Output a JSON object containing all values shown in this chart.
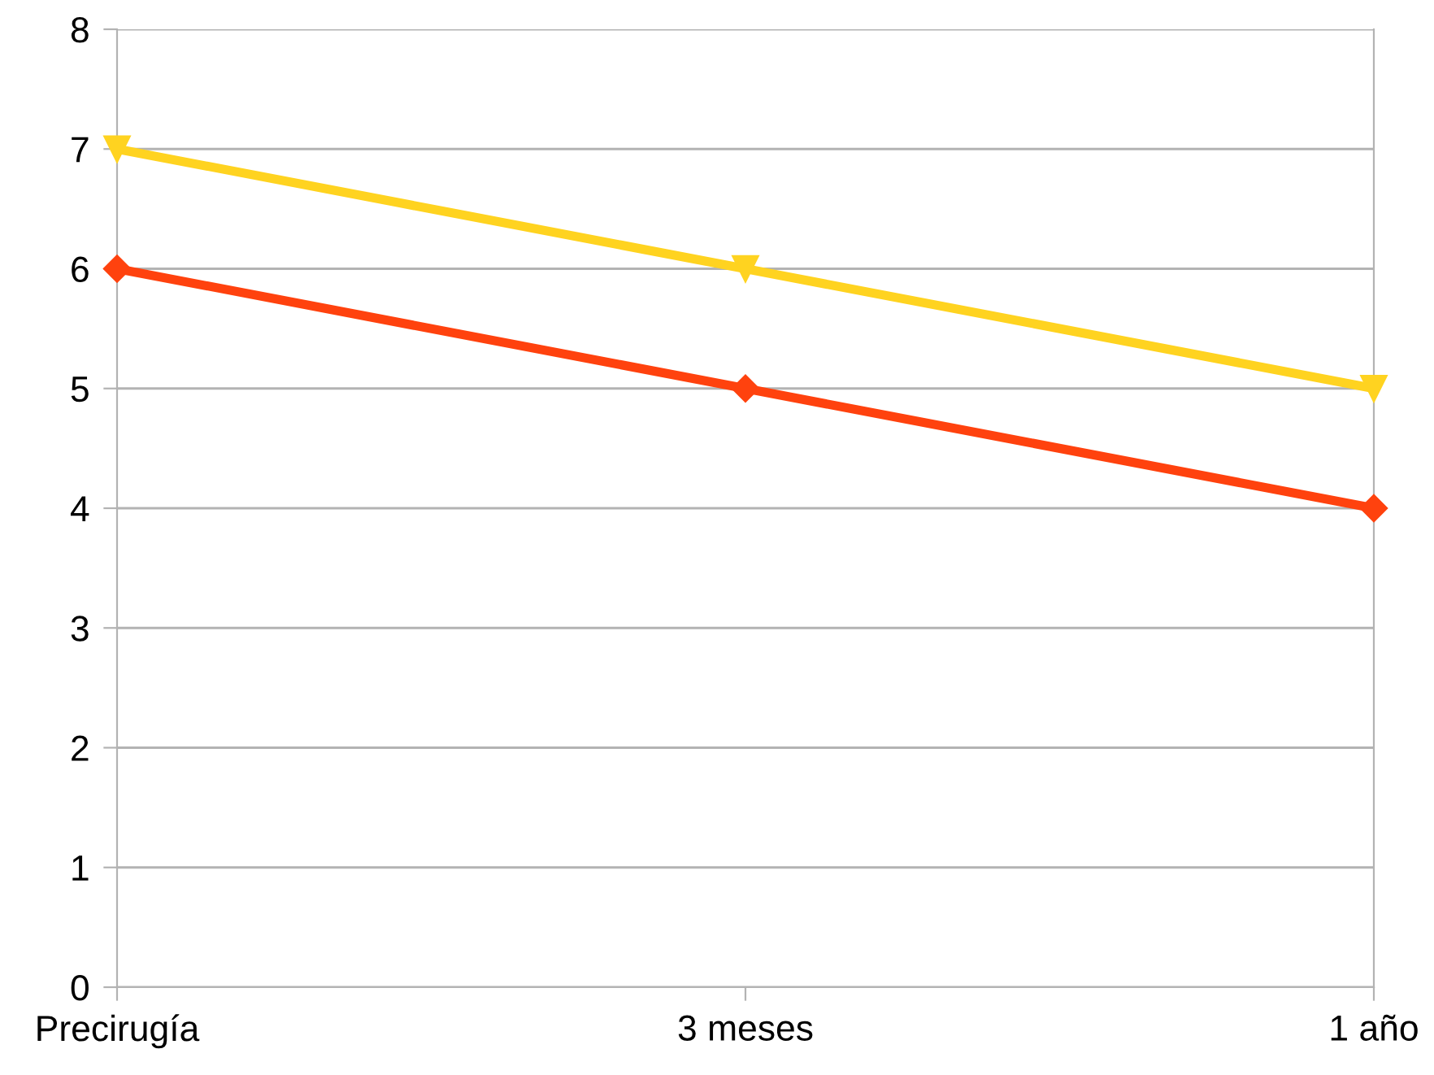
{
  "chart_data": {
    "type": "line",
    "categories": [
      "Precirugía",
      "3 meses",
      "1 año"
    ],
    "series": [
      {
        "color": "#ffd320",
        "marker": "triangle",
        "values": [
          7,
          6,
          5
        ]
      },
      {
        "color": "#ff420e",
        "marker": "diamond",
        "values": [
          6,
          5,
          4
        ]
      }
    ],
    "ylim": [
      0,
      8
    ],
    "yticks": [
      0,
      1,
      2,
      3,
      4,
      5,
      6,
      7,
      8
    ],
    "grid": "y",
    "legend": false,
    "line_style": "solid"
  }
}
